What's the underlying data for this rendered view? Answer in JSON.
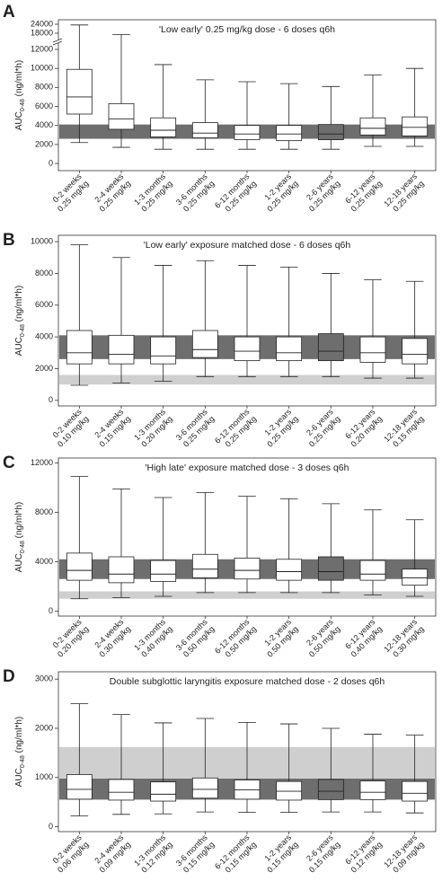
{
  "chart_data": [
    {
      "panel": "A",
      "type": "box",
      "title": "'Low early' 0.25 mg/kg dose - 6 doses q6h",
      "ylabel": "AUC",
      "ylabel_sub": "0-48",
      "ylabel_rest": " (ng/ml*h)",
      "categories": [
        "0-2 weeks",
        "2-4 weeks",
        "1-3 months",
        "3-6 months",
        "6-12 months",
        "1-2 years",
        "2-6 years",
        "6-12 years",
        "12-18 years"
      ],
      "doses": [
        "0.25 mg/kg",
        "0.25 mg/kg",
        "0.25 mg/kg",
        "0.25 mg/kg",
        "0.25 mg/kg",
        "0.25 mg/kg",
        "0.25 mg/kg",
        "0.25 mg/kg",
        "0.25 mg/kg"
      ],
      "whislo": [
        2200,
        1700,
        1500,
        1500,
        1500,
        1500,
        1500,
        1800,
        1800
      ],
      "q1": [
        5200,
        3600,
        2800,
        2700,
        2500,
        2400,
        2500,
        3000,
        2900
      ],
      "med": [
        7000,
        4700,
        3500,
        3200,
        3100,
        3100,
        3100,
        3700,
        3800
      ],
      "q3": [
        9900,
        6300,
        4800,
        4300,
        4000,
        4000,
        4100,
        4800,
        4900
      ],
      "whishi": [
        23500,
        17500,
        10400,
        8800,
        8600,
        8400,
        8100,
        9300,
        10000
      ],
      "box_fills": [
        "#ffffff",
        "#ffffff",
        "#ffffff",
        "#ffffff",
        "#ffffff",
        "#ffffff",
        "#6e6e6e",
        "#ffffff",
        "#ffffff"
      ],
      "bands": [
        {
          "range": [
            2600,
            4100
          ],
          "color": "#6e6e6e"
        }
      ],
      "ylim": [
        -750,
        27000
      ],
      "ybreak": [
        12000,
        18000
      ],
      "yticks": [
        0,
        2000,
        4000,
        6000,
        8000,
        10000,
        12000,
        18000,
        24000
      ]
    },
    {
      "panel": "B",
      "type": "box",
      "title": "'Low early' exposure matched dose - 6 doses q6h",
      "ylabel": "AUC",
      "ylabel_sub": "0-48",
      "ylabel_rest": " (ng/ml*h)",
      "categories": [
        "0-2 weeks",
        "2-4 weeks",
        "1-3 months",
        "3-6 months",
        "6-12 months",
        "1-2 years",
        "2-6 years",
        "6-12 years",
        "12-18 years"
      ],
      "doses": [
        "0.10 mg/kg",
        "0.15 mg/kg",
        "0.20 mg/kg",
        "0.25 mg/kg",
        "0.25 mg/kg",
        "0.25 mg/kg",
        "0.25 mg/kg",
        "0.20 mg/kg",
        "0.15 mg/kg"
      ],
      "whislo": [
        950,
        1100,
        1200,
        1500,
        1500,
        1500,
        1500,
        1400,
        1400
      ],
      "q1": [
        2300,
        2300,
        2300,
        2700,
        2500,
        2500,
        2500,
        2400,
        2300
      ],
      "med": [
        3000,
        2900,
        2800,
        3200,
        3100,
        3000,
        3100,
        3000,
        2900
      ],
      "q3": [
        4400,
        4100,
        4000,
        4400,
        4000,
        4000,
        4200,
        4000,
        3900
      ],
      "whishi": [
        9800,
        9000,
        8500,
        8800,
        8500,
        8400,
        8000,
        7600,
        7500
      ],
      "box_fills": [
        "#ffffff",
        "#ffffff",
        "#ffffff",
        "#ffffff",
        "#ffffff",
        "#ffffff",
        "#6e6e6e",
        "#ffffff",
        "#ffffff"
      ],
      "bands": [
        {
          "range": [
            2600,
            4100
          ],
          "color": "#6e6e6e"
        },
        {
          "range": [
            1000,
            1600
          ],
          "color": "#cfcfcf"
        }
      ],
      "ylim": [
        -350,
        10400
      ],
      "yticks": [
        0,
        2000,
        4000,
        6000,
        8000,
        10000
      ]
    },
    {
      "panel": "C",
      "type": "box",
      "title": "'High late' exposure matched dose - 3 doses q6h",
      "ylabel": "AUC",
      "ylabel_sub": "0-48",
      "ylabel_rest": " (ng/ml*h)",
      "categories": [
        "0-2 weeks",
        "2-4 weeks",
        "1-3 months",
        "3-6 months",
        "6-12 months",
        "1-2 years",
        "2-6 years",
        "6-12 years",
        "12-18 years"
      ],
      "doses": [
        "0.20 mg/kg",
        "0.30 mg/kg",
        "0.40 mg/kg",
        "0.50 mg/kg",
        "0.50 mg/kg",
        "0.50 mg/kg",
        "0.50 mg/kg",
        "0.40 mg/kg",
        "0.30 mg/kg"
      ],
      "whislo": [
        1000,
        1100,
        1200,
        1500,
        1500,
        1500,
        1500,
        1300,
        1200
      ],
      "q1": [
        2500,
        2300,
        2400,
        2700,
        2600,
        2500,
        2500,
        2500,
        2100
      ],
      "med": [
        3300,
        3000,
        3000,
        3400,
        3300,
        3200,
        3200,
        3000,
        2700
      ],
      "q3": [
        4700,
        4400,
        4100,
        4600,
        4300,
        4200,
        4400,
        4100,
        3400
      ],
      "whishi": [
        10900,
        9900,
        9200,
        9600,
        9300,
        9100,
        8700,
        8200,
        7400
      ],
      "box_fills": [
        "#ffffff",
        "#ffffff",
        "#ffffff",
        "#ffffff",
        "#ffffff",
        "#ffffff",
        "#6e6e6e",
        "#ffffff",
        "#ffffff"
      ],
      "bands": [
        {
          "range": [
            2600,
            4200
          ],
          "color": "#6e6e6e"
        },
        {
          "range": [
            1000,
            1600
          ],
          "color": "#cfcfcf"
        }
      ],
      "ylim": [
        -400,
        12400
      ],
      "yticks": [
        0,
        4000,
        8000,
        12000
      ]
    },
    {
      "panel": "D",
      "type": "box",
      "title": "Double subglottic laryngitis exposure matched dose - 2 doses q6h",
      "ylabel": "AUC",
      "ylabel_sub": "0-48",
      "ylabel_rest": " (ng/ml*h)",
      "categories": [
        "0-2 weeks",
        "2-4 weeks",
        "1-3 months",
        "3-6 months",
        "6-12 months",
        "1-2 years",
        "2-6 years",
        "6-12 years",
        "12-18 years"
      ],
      "doses": [
        "0.06 mg/kg",
        "0.09 mg/kg",
        "0.12 mg/kg",
        "0.15 mg/kg",
        "0.15 mg/kg",
        "0.15 mg/kg",
        "0.15 mg/kg",
        "0.12 mg/kg",
        "0.09 mg/kg"
      ],
      "whislo": [
        220,
        250,
        260,
        300,
        290,
        290,
        300,
        300,
        280
      ],
      "q1": [
        560,
        540,
        520,
        580,
        560,
        540,
        550,
        550,
        520
      ],
      "med": [
        760,
        700,
        660,
        760,
        750,
        720,
        720,
        700,
        680
      ],
      "q3": [
        1060,
        960,
        910,
        990,
        950,
        920,
        960,
        930,
        920
      ],
      "whishi": [
        2500,
        2280,
        2110,
        2200,
        2120,
        2090,
        2000,
        1880,
        1860
      ],
      "box_fills": [
        "#ffffff",
        "#ffffff",
        "#ffffff",
        "#ffffff",
        "#ffffff",
        "#ffffff",
        "#6e6e6e",
        "#ffffff",
        "#ffffff"
      ],
      "bands": [
        {
          "range": [
            550,
            980
          ],
          "color": "#6e6e6e"
        },
        {
          "range": [
            980,
            1620
          ],
          "color": "#cfcfcf"
        }
      ],
      "ylim": [
        -100,
        3150
      ],
      "yticks": [
        0,
        1000,
        2000,
        3000
      ]
    }
  ]
}
